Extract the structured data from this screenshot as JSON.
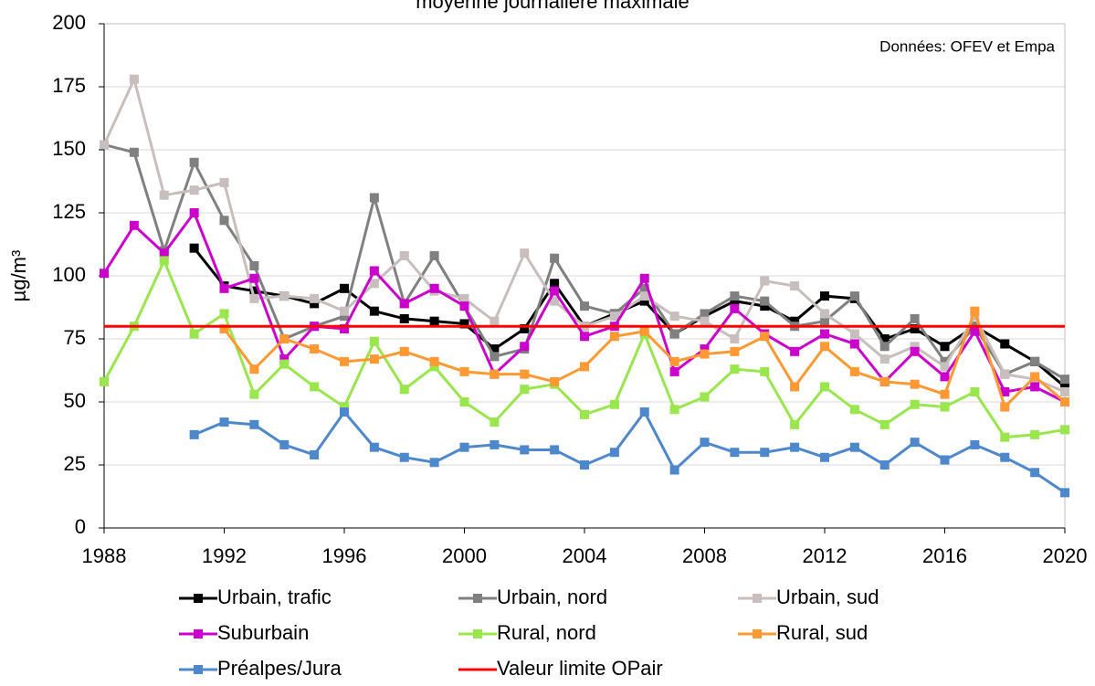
{
  "chart_data": {
    "type": "line",
    "title": "moyenne journalière maximale",
    "annotation": "Données: OFEV et Empa",
    "ylabel": "µg/m³",
    "x": [
      1988,
      1989,
      1990,
      1991,
      1992,
      1993,
      1994,
      1995,
      1996,
      1997,
      1998,
      1999,
      2000,
      2001,
      2002,
      2003,
      2004,
      2005,
      2006,
      2007,
      2008,
      2009,
      2010,
      2011,
      2012,
      2013,
      2014,
      2015,
      2016,
      2017,
      2018,
      2019,
      2020
    ],
    "xlim": [
      1988,
      2020
    ],
    "xticks": [
      1988,
      1992,
      1996,
      2000,
      2004,
      2008,
      2012,
      2016,
      2020
    ],
    "ylim": [
      0,
      200
    ],
    "yticks": [
      0,
      25,
      50,
      75,
      100,
      125,
      150,
      175,
      200
    ],
    "grid": true,
    "series": [
      {
        "name": "Urbain, trafic",
        "color": "#000000",
        "values": [
          null,
          null,
          null,
          111,
          96,
          94,
          92,
          89,
          95,
          86,
          83,
          82,
          81,
          71,
          79,
          97,
          80,
          85,
          90,
          77,
          84,
          90,
          88,
          82,
          92,
          91,
          75,
          79,
          72,
          80,
          73,
          66,
          56
        ]
      },
      {
        "name": "Urbain, nord",
        "color": "#808080",
        "values": [
          152,
          149,
          110,
          145,
          122,
          104,
          75,
          80,
          84,
          131,
          89,
          108,
          88,
          68,
          71,
          107,
          88,
          85,
          95,
          77,
          85,
          92,
          90,
          80,
          82,
          92,
          72,
          83,
          66,
          80,
          61,
          66,
          59
        ]
      },
      {
        "name": "Urbain, sud",
        "color": "#c8bebe",
        "values": [
          152,
          178,
          132,
          134,
          137,
          91,
          92,
          91,
          86,
          97,
          108,
          94,
          91,
          82,
          109,
          90,
          80,
          84,
          92,
          84,
          82,
          75,
          98,
          96,
          85,
          77,
          67,
          72,
          64,
          84,
          61,
          59,
          54
        ]
      },
      {
        "name": "Suburbain",
        "color": "#cc00cc",
        "values": [
          101,
          120,
          109,
          125,
          95,
          99,
          67,
          80,
          79,
          102,
          89,
          95,
          88,
          61,
          72,
          94,
          76,
          80,
          99,
          62,
          71,
          87,
          77,
          70,
          77,
          73,
          58,
          70,
          60,
          78,
          54,
          56,
          50
        ]
      },
      {
        "name": "Rural, nord",
        "color": "#99e64d",
        "values": [
          58,
          80,
          106,
          77,
          85,
          53,
          65,
          56,
          48,
          74,
          55,
          64,
          50,
          42,
          55,
          57,
          45,
          49,
          77,
          47,
          52,
          63,
          62,
          41,
          56,
          47,
          41,
          49,
          48,
          54,
          36,
          37,
          39
        ]
      },
      {
        "name": "Rural, sud",
        "color": "#ff9933",
        "values": [
          null,
          null,
          null,
          null,
          79,
          63,
          75,
          71,
          66,
          67,
          70,
          66,
          62,
          61,
          61,
          58,
          64,
          76,
          78,
          66,
          69,
          70,
          76,
          56,
          72,
          62,
          58,
          57,
          53,
          86,
          48,
          60,
          50
        ]
      },
      {
        "name": "Préalpes/Jura",
        "color": "#4d88cc",
        "values": [
          null,
          null,
          null,
          37,
          42,
          41,
          33,
          29,
          46,
          32,
          28,
          26,
          32,
          33,
          31,
          31,
          25,
          30,
          46,
          23,
          34,
          30,
          30,
          32,
          28,
          32,
          25,
          34,
          27,
          33,
          28,
          22,
          14
        ]
      }
    ],
    "reference_line": {
      "name": "Valeur limite OPair",
      "value": 80,
      "color": "#ff0000"
    }
  }
}
